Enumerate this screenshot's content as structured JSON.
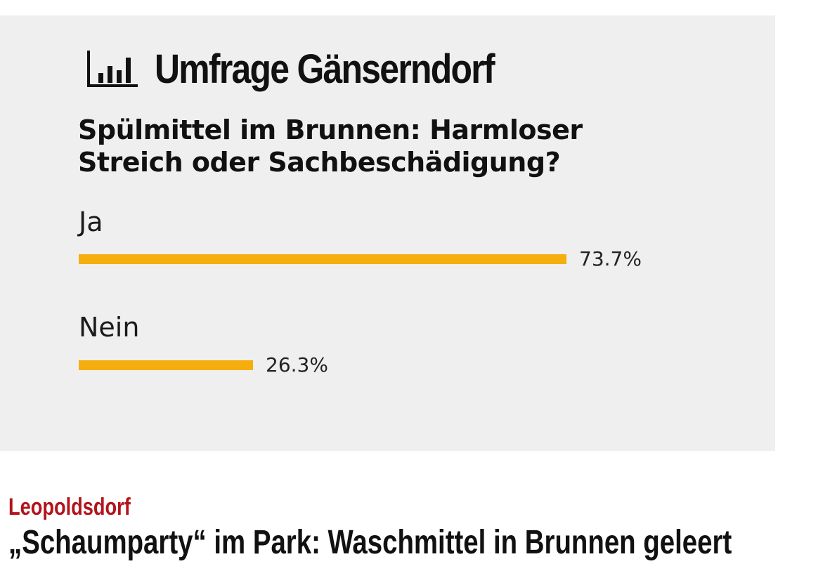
{
  "poll": {
    "title": "Umfrage Gänserndorf",
    "question_line1": "Spülmittel im Brunnen: Harmloser",
    "question_line2": "Streich oder Sachbeschädigung?",
    "bar_color": "#f6ae0e",
    "icon": "bar-chart-icon",
    "options": [
      {
        "label": "Ja",
        "percent_text": "73.7%",
        "percent": 73.7
      },
      {
        "label": "Nein",
        "percent_text": "26.3%",
        "percent": 26.3
      }
    ]
  },
  "article": {
    "kicker": "Leopoldsdorf",
    "kicker_color": "#b3141c",
    "headline": "„Schaumparty“ im Park: Waschmittel in Brunnen geleert"
  }
}
